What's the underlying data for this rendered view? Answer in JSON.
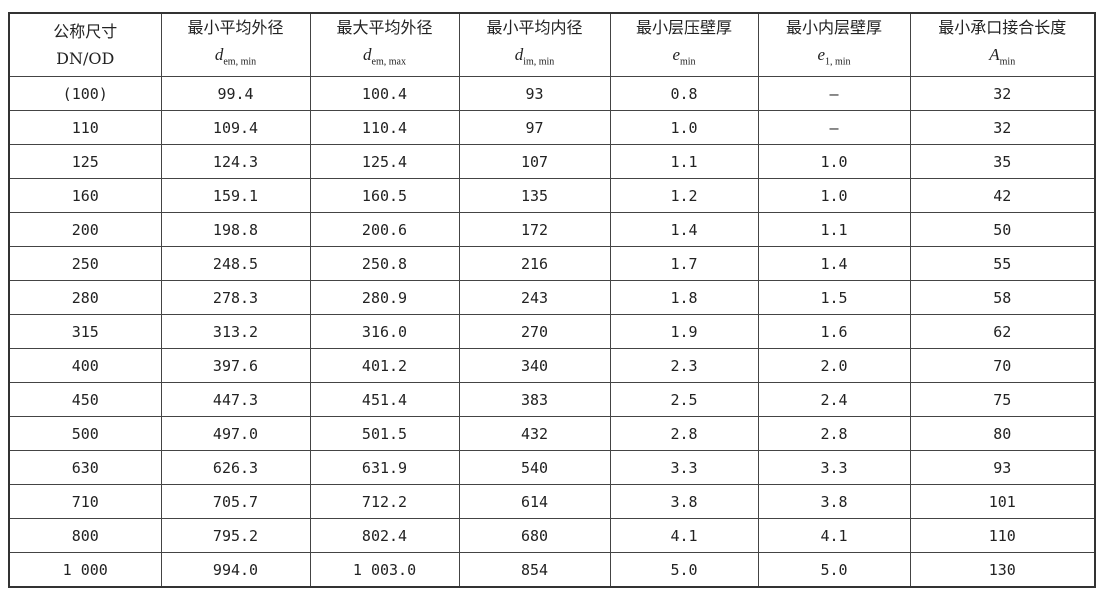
{
  "headers": [
    {
      "title": "公称尺寸",
      "symbol": "DN/OD",
      "sub": ""
    },
    {
      "title": "最小平均外径",
      "symbol": "d",
      "sub": "em, min"
    },
    {
      "title": "最大平均外径",
      "symbol": "d",
      "sub": "em, max"
    },
    {
      "title": "最小平均内径",
      "symbol": "d",
      "sub": "im, min"
    },
    {
      "title": "最小层压壁厚",
      "symbol": "e",
      "sub": "min"
    },
    {
      "title": "最小内层壁厚",
      "symbol": "e",
      "sub": "1, min"
    },
    {
      "title": "最小承口接合长度",
      "symbol": "A",
      "sub": "min"
    }
  ],
  "rows": [
    [
      "(100)",
      "99.4",
      "100.4",
      "93",
      "0.8",
      "—",
      "32"
    ],
    [
      "110",
      "109.4",
      "110.4",
      "97",
      "1.0",
      "—",
      "32"
    ],
    [
      "125",
      "124.3",
      "125.4",
      "107",
      "1.1",
      "1.0",
      "35"
    ],
    [
      "160",
      "159.1",
      "160.5",
      "135",
      "1.2",
      "1.0",
      "42"
    ],
    [
      "200",
      "198.8",
      "200.6",
      "172",
      "1.4",
      "1.1",
      "50"
    ],
    [
      "250",
      "248.5",
      "250.8",
      "216",
      "1.7",
      "1.4",
      "55"
    ],
    [
      "280",
      "278.3",
      "280.9",
      "243",
      "1.8",
      "1.5",
      "58"
    ],
    [
      "315",
      "313.2",
      "316.0",
      "270",
      "1.9",
      "1.6",
      "62"
    ],
    [
      "400",
      "397.6",
      "401.2",
      "340",
      "2.3",
      "2.0",
      "70"
    ],
    [
      "450",
      "447.3",
      "451.4",
      "383",
      "2.5",
      "2.4",
      "75"
    ],
    [
      "500",
      "497.0",
      "501.5",
      "432",
      "2.8",
      "2.8",
      "80"
    ],
    [
      "630",
      "626.3",
      "631.9",
      "540",
      "3.3",
      "3.3",
      "93"
    ],
    [
      "710",
      "705.7",
      "712.2",
      "614",
      "3.8",
      "3.8",
      "101"
    ],
    [
      "800",
      "795.2",
      "802.4",
      "680",
      "4.1",
      "4.1",
      "110"
    ],
    [
      "1 000",
      "994.0",
      "1 003.0",
      "854",
      "5.0",
      "5.0",
      "130"
    ]
  ]
}
